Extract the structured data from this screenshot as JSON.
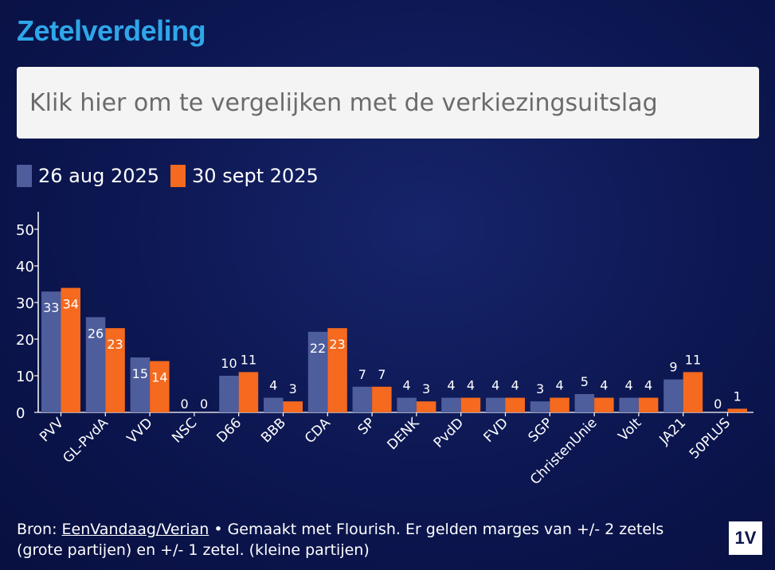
{
  "title": "Zetelverdeling",
  "compare_button": "Klik hier om te vergelijken met de verkiezingsuitslag",
  "colors": {
    "series1": "#4e5d9c",
    "series2": "#f56a1e",
    "title": "#2ea7e8"
  },
  "footer": {
    "source_label": "Bron: ",
    "source_link": "EenVandaag/Verian",
    "text": " • Gemaakt met Flourish. Er gelden marges van +/- 2 zetels (grote partijen) en +/- 1 zetel. (kleine partijen)"
  },
  "logo_text": "1V",
  "chart_data": {
    "type": "bar",
    "title": "Zetelverdeling",
    "xlabel": "",
    "ylabel": "",
    "ylim": [
      0,
      55
    ],
    "yticks": [
      0,
      10,
      20,
      30,
      40,
      50
    ],
    "categories": [
      "PVV",
      "GL-PvdA",
      "VVD",
      "NSC",
      "D66",
      "BBB",
      "CDA",
      "SP",
      "DENK",
      "PvdD",
      "FVD",
      "SGP",
      "ChristenUnie",
      "Volt",
      "JA21",
      "50PLUS"
    ],
    "series": [
      {
        "name": "26 aug 2025",
        "values": [
          33,
          26,
          15,
          0,
          10,
          4,
          22,
          7,
          4,
          4,
          4,
          3,
          5,
          4,
          9,
          0
        ]
      },
      {
        "name": "30 sept 2025",
        "values": [
          34,
          23,
          14,
          0,
          11,
          3,
          23,
          7,
          3,
          4,
          4,
          4,
          4,
          4,
          11,
          1
        ]
      }
    ],
    "legend_position": "top-left"
  }
}
